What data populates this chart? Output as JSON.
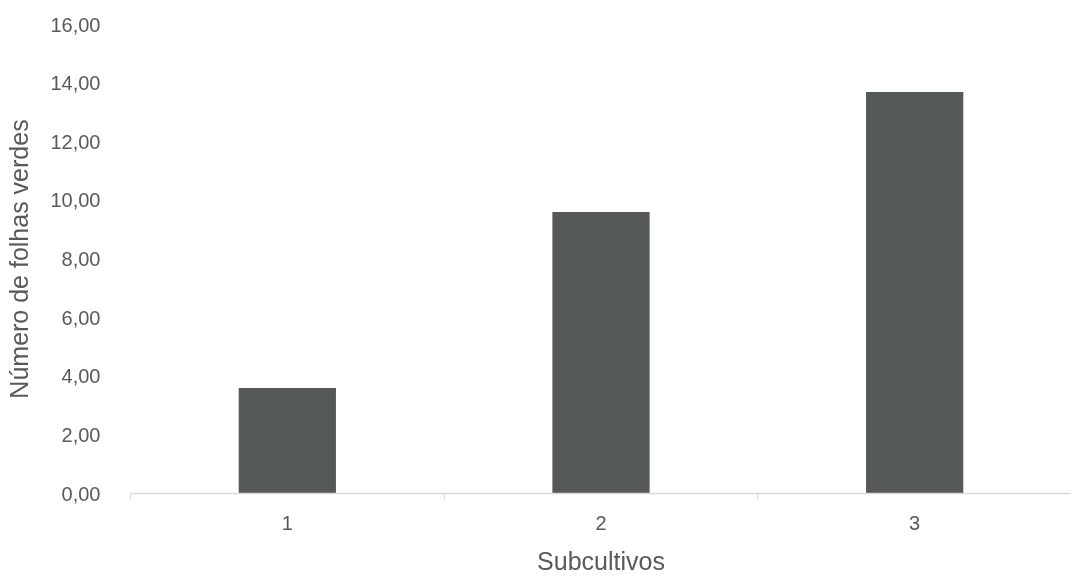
{
  "chart_data": {
    "type": "bar",
    "xlabel": "Subcultivos",
    "ylabel": "Número de folhas verdes",
    "categories": [
      "1",
      "2",
      "3"
    ],
    "values": [
      3.6,
      9.6,
      13.7
    ],
    "color": "#555859",
    "ylim": [
      0,
      16
    ],
    "yticks": [
      {
        "value": 0,
        "label": "0,00"
      },
      {
        "value": 2,
        "label": "2,00"
      },
      {
        "value": 4,
        "label": "4,00"
      },
      {
        "value": 6,
        "label": "6,00"
      },
      {
        "value": 8,
        "label": "8,00"
      },
      {
        "value": 10,
        "label": "10,00"
      },
      {
        "value": 12,
        "label": "12,00"
      },
      {
        "value": 14,
        "label": "14,00"
      },
      {
        "value": 16,
        "label": "16,00"
      }
    ],
    "grid": false
  }
}
